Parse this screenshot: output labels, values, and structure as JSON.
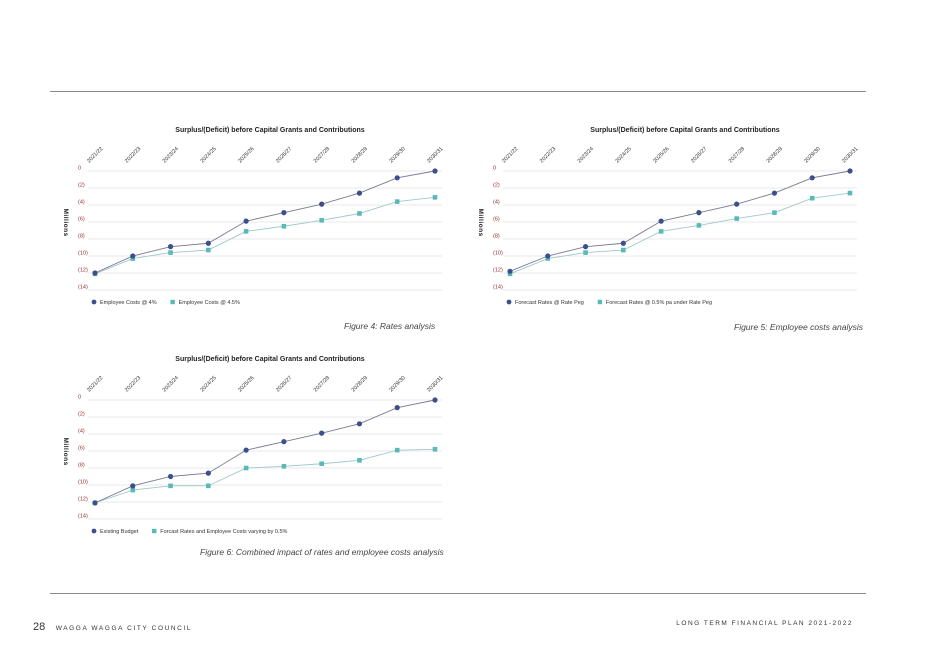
{
  "colors": {
    "series1": "#3b4f8c",
    "series2": "#5bb8b8",
    "axis_tick": "#9b2c2c",
    "grid": "#e2e2e2"
  },
  "figures": [
    {
      "caption": "Figure 4: Rates analysis",
      "chart_data": {
        "type": "line",
        "title": "Surplus/(Deficit) before Capital Grants and Contributions",
        "ylabel": "Millions",
        "x": [
          "2021/22",
          "2022/23",
          "2023/24",
          "2024/25",
          "2025/26",
          "2026/27",
          "2027/28",
          "2028/29",
          "2029/30",
          "2030/31"
        ],
        "yticks": [
          "0",
          "(2)",
          "(4)",
          "(6)",
          "(8)",
          "(10)",
          "(12)",
          "(14)"
        ],
        "ylim": [
          -14,
          0
        ],
        "grid": true,
        "legend_position": "bottom-left",
        "series": [
          {
            "name": "Employee Costs @ 4%",
            "marker": "circle",
            "values": [
              -12.0,
              -10.0,
              -8.9,
              -8.5,
              -5.9,
              -4.9,
              -3.9,
              -2.6,
              -0.8,
              0.0
            ]
          },
          {
            "name": "Employee Costs @ 4.5%",
            "marker": "square",
            "values": [
              -12.1,
              -10.3,
              -9.6,
              -9.3,
              -7.1,
              -6.5,
              -5.8,
              -5.0,
              -3.6,
              -3.1
            ]
          }
        ]
      }
    },
    {
      "caption": "Figure 5: Employee costs analysis",
      "chart_data": {
        "type": "line",
        "title": "Surplus/(Deficit) before Capital Grants and Contributions",
        "ylabel": "Millions",
        "x": [
          "2021/22",
          "2022/23",
          "2023/24",
          "2024/25",
          "2025/26",
          "2026/27",
          "2027/28",
          "2028/29",
          "2029/30",
          "2030/31"
        ],
        "yticks": [
          "0",
          "(2)",
          "(4)",
          "(6)",
          "(8)",
          "(10)",
          "(12)",
          "(14)"
        ],
        "ylim": [
          -14,
          0
        ],
        "grid": true,
        "legend_position": "bottom-left",
        "series": [
          {
            "name": "Forecast Rates @ Rate Peg",
            "marker": "circle",
            "values": [
              -11.8,
              -10.0,
              -8.9,
              -8.5,
              -5.9,
              -4.9,
              -3.9,
              -2.6,
              -0.8,
              0.0
            ]
          },
          {
            "name": "Forecast Rates @ 0.5% pa under Rate Peg",
            "marker": "square",
            "values": [
              -12.1,
              -10.3,
              -9.6,
              -9.3,
              -7.1,
              -6.4,
              -5.6,
              -4.9,
              -3.2,
              -2.6
            ]
          }
        ]
      }
    },
    {
      "caption": "Figure 6: Combined impact of rates and employee costs analysis",
      "chart_data": {
        "type": "line",
        "title": "Surplus/(Deficit) before Capital Grants and Contributions",
        "ylabel": "Millions",
        "x": [
          "2021/22",
          "2022/23",
          "2023/24",
          "2024/25",
          "2025/26",
          "2026/27",
          "2027/28",
          "2028/29",
          "2029/30",
          "2030/31"
        ],
        "yticks": [
          "0",
          "(2)",
          "(4)",
          "(6)",
          "(8)",
          "(10)",
          "(12)",
          "(14)"
        ],
        "ylim": [
          -14,
          0
        ],
        "grid": true,
        "legend_position": "bottom-left",
        "series": [
          {
            "name": "Existing Budget",
            "marker": "circle",
            "values": [
              -12.1,
              -10.1,
              -9.0,
              -8.6,
              -5.9,
              -4.9,
              -3.9,
              -2.8,
              -0.9,
              0.0
            ]
          },
          {
            "name": "Forcast Rates and Employee Costs varying by 0.5%",
            "marker": "square",
            "values": [
              -12.1,
              -10.6,
              -10.1,
              -10.1,
              -8.0,
              -7.8,
              -7.5,
              -7.1,
              -5.9,
              -5.8
            ]
          }
        ]
      }
    }
  ],
  "footer": {
    "page_number": "28",
    "org_name": "WAGGA WAGGA CITY COUNCIL",
    "doc_title": "LONG TERM FINANCIAL PLAN 2021-2022"
  }
}
